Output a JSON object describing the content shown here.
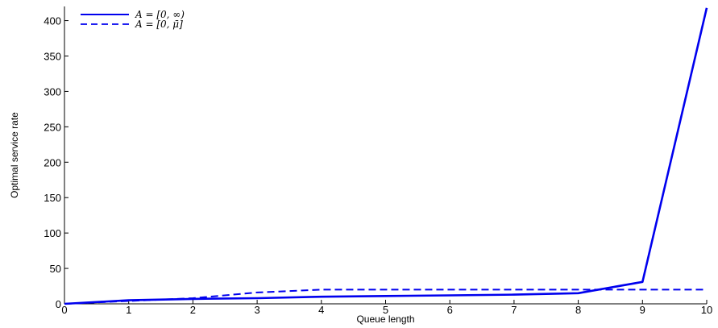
{
  "chart_data": {
    "type": "line",
    "title": "",
    "xlabel": "Queue length",
    "ylabel": "Optimal service rate",
    "xlim": [
      0,
      10
    ],
    "ylim": [
      0,
      420
    ],
    "xticks": [
      0,
      1,
      2,
      3,
      4,
      5,
      6,
      7,
      8,
      9,
      10
    ],
    "yticks": [
      0,
      50,
      100,
      150,
      200,
      250,
      300,
      350,
      400
    ],
    "grid": false,
    "legend_position": "top-left",
    "line_color": "#0000ee",
    "series": [
      {
        "name": "A = [0, ∞)",
        "style": "solid",
        "x": [
          0,
          1,
          2,
          3,
          4,
          5,
          6,
          7,
          8,
          9,
          10
        ],
        "y": [
          0,
          5,
          7,
          8,
          10,
          11,
          12,
          13,
          15,
          31,
          418
        ]
      },
      {
        "name": "A = [0, μ̄]",
        "style": "dashed",
        "x": [
          0,
          1,
          2,
          3,
          4,
          5,
          6,
          7,
          8,
          9,
          10
        ],
        "y": [
          0,
          4,
          8,
          16,
          20,
          20,
          20,
          20,
          20,
          20,
          20
        ]
      }
    ]
  }
}
